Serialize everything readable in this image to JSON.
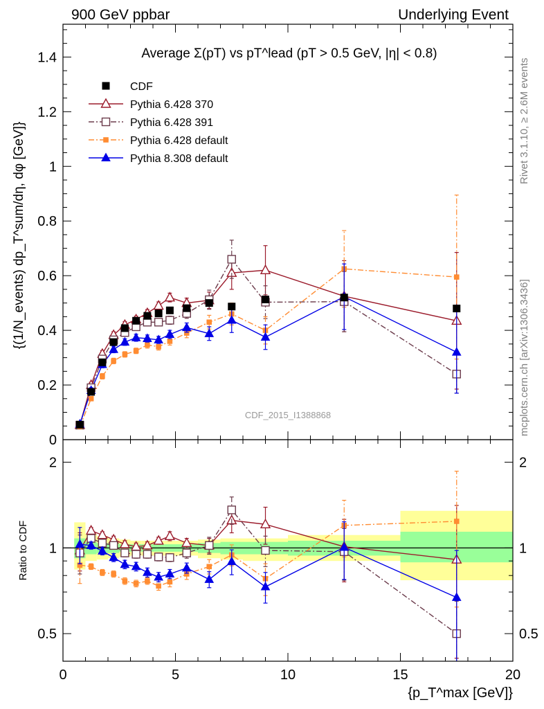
{
  "header": {
    "left": "900 GeV ppbar",
    "right": "Underlying Event"
  },
  "side_text": {
    "top": "Rivet 3.1.10, ≥ 2.6M events",
    "bottom": "mcplots.cern.ch [arXiv:1306.3436]"
  },
  "watermark": "CDF_2015_I1388868",
  "colors": {
    "CDF": "#000000",
    "Pythia 6.428 370": "#9b1b2b",
    "Pythia 6.428 391": "#6b3b4b",
    "Pythia 6.428 default": "#ff8c32",
    "Pythia 8.308 default": "#0000e6",
    "band_outer": "#ffff99",
    "band_inner": "#99ff99"
  },
  "chart_data": [
    {
      "type": "scatter",
      "title": "Average Σ(pT) vs pT^lead (pT > 0.5 GeV, |η| < 0.8)",
      "ylabel": "{(1/N_events) dp_T^sum/dη, dφ [GeV]}",
      "xlim": [
        0,
        20
      ],
      "ylim": [
        0,
        1.52
      ],
      "yticks": [
        "0",
        "0.2",
        "0.4",
        "0.6",
        "0.8",
        "1",
        "1.2",
        "1.4"
      ],
      "legend_position": "top-left",
      "series": [
        {
          "name": "CDF",
          "marker": "filled-square",
          "points": [
            [
              0.75,
              0.055
            ],
            [
              1.25,
              0.175
            ],
            [
              1.75,
              0.283
            ],
            [
              2.25,
              0.357
            ],
            [
              2.75,
              0.408
            ],
            [
              3.25,
              0.435
            ],
            [
              3.75,
              0.453
            ],
            [
              4.25,
              0.462
            ],
            [
              4.75,
              0.473
            ],
            [
              5.5,
              0.481
            ],
            [
              6.5,
              0.5
            ],
            [
              7.5,
              0.487
            ],
            [
              9.0,
              0.513
            ],
            [
              12.5,
              0.52
            ],
            [
              17.5,
              0.48
            ]
          ]
        },
        {
          "name": "Pythia 6.428 370",
          "marker": "open-triangle",
          "line": "solid",
          "points": [
            [
              0.75,
              0.054,
              0.008
            ],
            [
              1.25,
              0.2,
              0.01
            ],
            [
              1.75,
              0.314,
              0.012
            ],
            [
              2.25,
              0.383,
              0.012
            ],
            [
              2.75,
              0.42,
              0.012
            ],
            [
              3.25,
              0.44,
              0.012
            ],
            [
              3.75,
              0.463,
              0.013
            ],
            [
              4.25,
              0.49,
              0.014
            ],
            [
              4.75,
              0.52,
              0.016
            ],
            [
              5.5,
              0.5,
              0.018
            ],
            [
              6.5,
              0.51,
              0.03
            ],
            [
              7.5,
              0.61,
              0.06
            ],
            [
              9.0,
              0.62,
              0.09
            ],
            [
              12.5,
              0.525,
              0.13
            ],
            [
              17.5,
              0.435,
              0.25
            ]
          ]
        },
        {
          "name": "Pythia 6.428 391",
          "marker": "open-square",
          "line": "dash-dot",
          "points": [
            [
              0.75,
              0.053,
              0.008
            ],
            [
              1.25,
              0.19,
              0.01
            ],
            [
              1.75,
              0.295,
              0.012
            ],
            [
              2.25,
              0.365,
              0.012
            ],
            [
              2.75,
              0.392,
              0.012
            ],
            [
              3.25,
              0.413,
              0.012
            ],
            [
              3.75,
              0.43,
              0.013
            ],
            [
              4.25,
              0.43,
              0.013
            ],
            [
              4.75,
              0.437,
              0.015
            ],
            [
              5.5,
              0.462,
              0.018
            ],
            [
              6.5,
              0.512,
              0.035
            ],
            [
              7.5,
              0.66,
              0.07
            ],
            [
              9.0,
              0.503,
              0.06
            ],
            [
              12.5,
              0.505,
              0.11
            ],
            [
              17.5,
              0.24,
              0.07
            ]
          ]
        },
        {
          "name": "Pythia 6.428 default",
          "marker": "filled-small-square",
          "line": "dash-dot",
          "points": [
            [
              0.75,
              0.048,
              0.006
            ],
            [
              1.25,
              0.15,
              0.008
            ],
            [
              1.75,
              0.232,
              0.01
            ],
            [
              2.25,
              0.288,
              0.01
            ],
            [
              2.75,
              0.312,
              0.01
            ],
            [
              3.25,
              0.325,
              0.01
            ],
            [
              3.75,
              0.347,
              0.012
            ],
            [
              4.25,
              0.34,
              0.012
            ],
            [
              4.75,
              0.36,
              0.014
            ],
            [
              5.5,
              0.39,
              0.017
            ],
            [
              6.5,
              0.43,
              0.025
            ],
            [
              7.5,
              0.46,
              0.04
            ],
            [
              9.0,
              0.4,
              0.05
            ],
            [
              12.5,
              0.625,
              0.14
            ],
            [
              17.5,
              0.595,
              0.3
            ]
          ]
        },
        {
          "name": "Pythia 8.308 default",
          "marker": "filled-triangle",
          "line": "solid",
          "points": [
            [
              0.75,
              0.057,
              0.008
            ],
            [
              1.25,
              0.18,
              0.01
            ],
            [
              1.75,
              0.275,
              0.012
            ],
            [
              2.25,
              0.33,
              0.012
            ],
            [
              2.75,
              0.357,
              0.012
            ],
            [
              3.25,
              0.373,
              0.013
            ],
            [
              3.75,
              0.37,
              0.013
            ],
            [
              4.25,
              0.365,
              0.013
            ],
            [
              4.75,
              0.385,
              0.015
            ],
            [
              5.5,
              0.41,
              0.017
            ],
            [
              6.5,
              0.388,
              0.025
            ],
            [
              7.5,
              0.437,
              0.045
            ],
            [
              9.0,
              0.375,
              0.045
            ],
            [
              12.5,
              0.523,
              0.12
            ],
            [
              17.5,
              0.32,
              0.15
            ]
          ]
        }
      ]
    },
    {
      "type": "scatter",
      "ylabel": "Ratio to CDF",
      "xlabel": "{p_T^max [GeV]}",
      "xlim": [
        0,
        20
      ],
      "ylim": [
        0.4,
        2.4
      ],
      "log_y": true,
      "yticks": [
        "0.5",
        "1",
        "2"
      ],
      "xticks": [
        "0",
        "5",
        "10",
        "15",
        "20"
      ],
      "reference_bands": [
        {
          "x": [
            0.5,
            1.0
          ],
          "inner": [
            0.92,
            1.08
          ],
          "outer": [
            0.84,
            1.23
          ]
        },
        {
          "x": [
            1.0,
            1.5
          ],
          "inner": [
            0.95,
            1.05
          ],
          "outer": [
            0.9,
            1.12
          ]
        },
        {
          "x": [
            1.5,
            2.0
          ],
          "inner": [
            0.96,
            1.04
          ],
          "outer": [
            0.91,
            1.1
          ]
        },
        {
          "x": [
            2.0,
            2.5
          ],
          "inner": [
            0.96,
            1.04
          ],
          "outer": [
            0.92,
            1.08
          ]
        },
        {
          "x": [
            2.5,
            3.0
          ],
          "inner": [
            0.97,
            1.03
          ],
          "outer": [
            0.93,
            1.07
          ]
        },
        {
          "x": [
            3.0,
            3.5
          ],
          "inner": [
            0.97,
            1.03
          ],
          "outer": [
            0.94,
            1.06
          ]
        },
        {
          "x": [
            3.5,
            4.0
          ],
          "inner": [
            0.97,
            1.03
          ],
          "outer": [
            0.94,
            1.06
          ]
        },
        {
          "x": [
            4.0,
            4.5
          ],
          "inner": [
            0.97,
            1.03
          ],
          "outer": [
            0.94,
            1.06
          ]
        },
        {
          "x": [
            4.5,
            5.0
          ],
          "inner": [
            0.97,
            1.03
          ],
          "outer": [
            0.94,
            1.06
          ]
        },
        {
          "x": [
            5.0,
            6.0
          ],
          "inner": [
            0.97,
            1.03
          ],
          "outer": [
            0.94,
            1.06
          ]
        },
        {
          "x": [
            6.0,
            7.0
          ],
          "inner": [
            0.96,
            1.04
          ],
          "outer": [
            0.92,
            1.07
          ]
        },
        {
          "x": [
            7.0,
            8.0
          ],
          "inner": [
            0.95,
            1.05
          ],
          "outer": [
            0.91,
            1.08
          ]
        },
        {
          "x": [
            8.0,
            10.0
          ],
          "inner": [
            0.95,
            1.05
          ],
          "outer": [
            0.9,
            1.08
          ]
        },
        {
          "x": [
            10.0,
            15.0
          ],
          "inner": [
            0.94,
            1.06
          ],
          "outer": [
            0.9,
            1.11
          ]
        },
        {
          "x": [
            15.0,
            20.0
          ],
          "inner": [
            0.89,
            1.14
          ],
          "outer": [
            0.77,
            1.35
          ]
        }
      ],
      "series": [
        {
          "name": "Pythia 6.428 370",
          "points": [
            [
              0.75,
              0.98,
              0.15
            ],
            [
              1.25,
              1.15,
              0.03
            ],
            [
              1.75,
              1.11,
              0.03
            ],
            [
              2.25,
              1.07,
              0.03
            ],
            [
              2.75,
              1.03,
              0.03
            ],
            [
              3.25,
              1.01,
              0.03
            ],
            [
              3.75,
              1.02,
              0.03
            ],
            [
              4.25,
              1.06,
              0.03
            ],
            [
              4.75,
              1.1,
              0.04
            ],
            [
              5.5,
              1.04,
              0.04
            ],
            [
              6.5,
              1.02,
              0.06
            ],
            [
              7.5,
              1.25,
              0.12
            ],
            [
              9.0,
              1.21,
              0.18
            ],
            [
              12.5,
              1.01,
              0.25
            ],
            [
              17.5,
              0.91,
              0.5
            ]
          ]
        },
        {
          "name": "Pythia 6.428 391",
          "points": [
            [
              0.75,
              0.96,
              0.15
            ],
            [
              1.25,
              1.08,
              0.03
            ],
            [
              1.75,
              1.04,
              0.03
            ],
            [
              2.25,
              1.02,
              0.03
            ],
            [
              2.75,
              0.96,
              0.03
            ],
            [
              3.25,
              0.95,
              0.03
            ],
            [
              3.75,
              0.95,
              0.03
            ],
            [
              4.25,
              0.93,
              0.03
            ],
            [
              4.75,
              0.925,
              0.03
            ],
            [
              5.5,
              0.96,
              0.04
            ],
            [
              6.5,
              1.02,
              0.07
            ],
            [
              7.5,
              1.36,
              0.15
            ],
            [
              9.0,
              0.98,
              0.12
            ],
            [
              12.5,
              0.97,
              0.2
            ],
            [
              17.5,
              0.5,
              0.15
            ]
          ]
        },
        {
          "name": "Pythia 6.428 default",
          "points": [
            [
              0.75,
              0.87,
              0.12
            ],
            [
              1.25,
              0.86,
              0.02
            ],
            [
              1.75,
              0.82,
              0.02
            ],
            [
              2.25,
              0.81,
              0.02
            ],
            [
              2.75,
              0.765,
              0.02
            ],
            [
              3.25,
              0.75,
              0.02
            ],
            [
              3.75,
              0.765,
              0.02
            ],
            [
              4.25,
              0.735,
              0.025
            ],
            [
              4.75,
              0.76,
              0.03
            ],
            [
              5.5,
              0.81,
              0.035
            ],
            [
              6.5,
              0.86,
              0.05
            ],
            [
              7.5,
              0.945,
              0.08
            ],
            [
              9.0,
              0.78,
              0.1
            ],
            [
              12.5,
              1.2,
              0.27
            ],
            [
              17.5,
              1.24,
              0.62
            ]
          ]
        },
        {
          "name": "Pythia 8.308 default",
          "points": [
            [
              0.75,
              1.03,
              0.15
            ],
            [
              1.25,
              1.02,
              0.03
            ],
            [
              1.75,
              0.975,
              0.03
            ],
            [
              2.25,
              0.925,
              0.03
            ],
            [
              2.75,
              0.875,
              0.03
            ],
            [
              3.25,
              0.86,
              0.03
            ],
            [
              3.75,
              0.82,
              0.03
            ],
            [
              4.25,
              0.79,
              0.03
            ],
            [
              4.75,
              0.81,
              0.03
            ],
            [
              5.5,
              0.85,
              0.035
            ],
            [
              6.5,
              0.775,
              0.05
            ],
            [
              7.5,
              0.895,
              0.09
            ],
            [
              9.0,
              0.73,
              0.09
            ],
            [
              12.5,
              1.005,
              0.23
            ],
            [
              17.5,
              0.67,
              0.31
            ]
          ]
        }
      ]
    }
  ]
}
